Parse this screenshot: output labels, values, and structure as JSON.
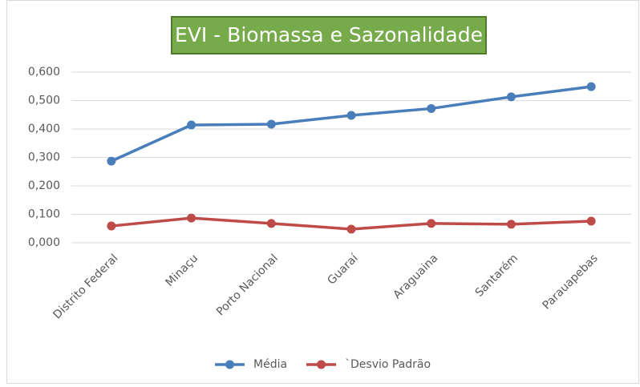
{
  "chart_data": {
    "type": "line",
    "title": "EVI - Biomassa e Sazonalidade",
    "categories": [
      "Distrito Federal",
      "Minaçu",
      "Porto Nacional",
      "Guaraí",
      "Araguaina",
      "Santarém",
      "Parauapebas"
    ],
    "series": [
      {
        "name": "Média",
        "color": "#4a7ebb",
        "values": [
          0.287,
          0.414,
          0.417,
          0.448,
          0.472,
          0.513,
          0.549
        ]
      },
      {
        "name": "`Desvio Padrão",
        "color": "#be4b48",
        "values": [
          0.059,
          0.087,
          0.068,
          0.048,
          0.068,
          0.065,
          0.076
        ]
      }
    ],
    "ylim": [
      0,
      0.6
    ],
    "yticks": [
      {
        "value": 0,
        "label": "0,000"
      },
      {
        "value": 0.1,
        "label": "0,100"
      },
      {
        "value": 0.2,
        "label": "0,200"
      },
      {
        "value": 0.3,
        "label": "0,300"
      },
      {
        "value": 0.4,
        "label": "0,400"
      },
      {
        "value": 0.5,
        "label": "0,500"
      },
      {
        "value": 0.6,
        "label": "0,600"
      }
    ],
    "grid": true,
    "legend": "bottom"
  }
}
